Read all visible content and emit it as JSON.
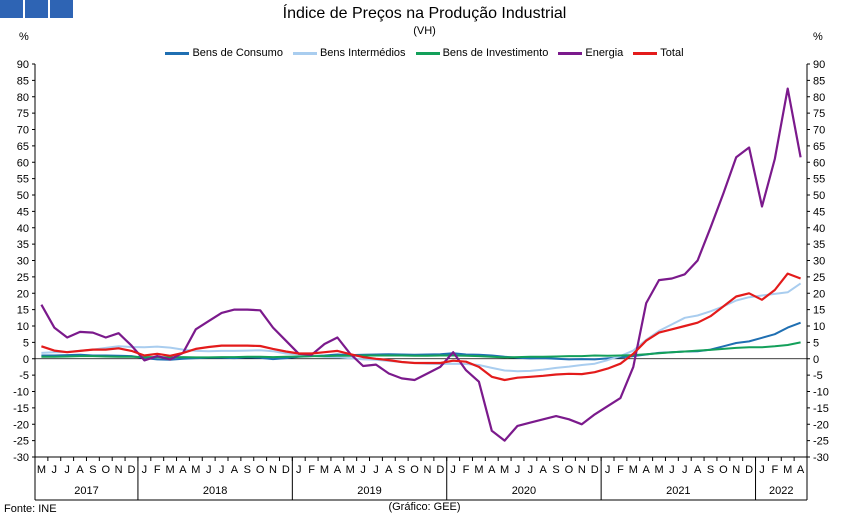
{
  "header": {
    "title": "Índice de Preços na Produção Industrial",
    "subtitle": "(VH)"
  },
  "units": {
    "left": "%",
    "right": "%"
  },
  "footer": {
    "source": "Fonte: INE",
    "credit": "(Gráfico: GEE)"
  },
  "chart_data": {
    "type": "line",
    "title": "Índice de Preços na Produção Industrial",
    "subtitle": "(VH)",
    "ylabel": "%",
    "ylim": [
      -30,
      90
    ],
    "yticks": [
      -30,
      -25,
      -20,
      -15,
      -10,
      -5,
      0,
      5,
      10,
      15,
      20,
      25,
      30,
      35,
      40,
      45,
      50,
      55,
      60,
      65,
      70,
      75,
      80,
      85,
      90
    ],
    "grid": false,
    "legend_position": "top",
    "x": [
      "2017-05",
      "2017-06",
      "2017-07",
      "2017-08",
      "2017-09",
      "2017-10",
      "2017-11",
      "2017-12",
      "2018-01",
      "2018-02",
      "2018-03",
      "2018-04",
      "2018-05",
      "2018-06",
      "2018-07",
      "2018-08",
      "2018-09",
      "2018-10",
      "2018-11",
      "2018-12",
      "2019-01",
      "2019-02",
      "2019-03",
      "2019-04",
      "2019-05",
      "2019-06",
      "2019-07",
      "2019-08",
      "2019-09",
      "2019-10",
      "2019-11",
      "2019-12",
      "2020-01",
      "2020-02",
      "2020-03",
      "2020-04",
      "2020-05",
      "2020-06",
      "2020-07",
      "2020-08",
      "2020-09",
      "2020-10",
      "2020-11",
      "2020-12",
      "2021-01",
      "2021-02",
      "2021-03",
      "2021-04",
      "2021-05",
      "2021-06",
      "2021-07",
      "2021-08",
      "2021-09",
      "2021-10",
      "2021-11",
      "2021-12",
      "2022-01",
      "2022-02",
      "2022-03",
      "2022-04"
    ],
    "month_labels": [
      "M",
      "J",
      "J",
      "A",
      "S",
      "O",
      "N",
      "D",
      "J",
      "F",
      "M",
      "A",
      "M",
      "J",
      "J",
      "A",
      "S",
      "O",
      "N",
      "D",
      "J",
      "F",
      "M",
      "A",
      "M",
      "J",
      "J",
      "A",
      "S",
      "O",
      "N",
      "D",
      "J",
      "F",
      "M",
      "A",
      "M",
      "J",
      "J",
      "A",
      "S",
      "O",
      "N",
      "D",
      "J",
      "F",
      "M",
      "A",
      "M",
      "J",
      "J",
      "A",
      "S",
      "O",
      "N",
      "D",
      "J",
      "F",
      "M",
      "A"
    ],
    "year_labels": [
      "2017",
      "2018",
      "2019",
      "2020",
      "2021",
      "2022"
    ],
    "year_spans": [
      [
        0,
        8
      ],
      [
        8,
        20
      ],
      [
        20,
        32
      ],
      [
        32,
        44
      ],
      [
        44,
        56
      ],
      [
        56,
        60
      ]
    ],
    "series": [
      {
        "name": "Bens de Consumo",
        "color": "#1f6fb2",
        "values": [
          1.0,
          1.0,
          1.1,
          1.2,
          1.0,
          1.0,
          0.9,
          0.8,
          0.2,
          -0.2,
          -0.3,
          0.0,
          0.2,
          0.3,
          0.3,
          0.2,
          0.4,
          0.3,
          -0.1,
          0.2,
          0.6,
          0.8,
          1.0,
          1.3,
          1.1,
          1.2,
          1.3,
          1.4,
          1.3,
          1.2,
          1.3,
          1.4,
          1.7,
          1.3,
          1.2,
          1.0,
          0.6,
          0.3,
          0.1,
          0.2,
          0.0,
          -0.2,
          -0.1,
          -0.2,
          0.1,
          0.4,
          0.8,
          1.3,
          1.8,
          2.0,
          2.2,
          2.3,
          2.8,
          3.8,
          4.8,
          5.3,
          6.4,
          7.5,
          9.5,
          11.0
        ]
      },
      {
        "name": "Bens Intermédios",
        "color": "#a9cdef",
        "values": [
          1.8,
          2.0,
          2.1,
          2.4,
          2.8,
          3.3,
          3.8,
          3.6,
          3.5,
          3.7,
          3.4,
          2.8,
          2.4,
          2.3,
          2.4,
          2.4,
          2.5,
          2.6,
          2.3,
          1.6,
          1.3,
          0.9,
          0.6,
          0.4,
          0.2,
          -0.2,
          -0.3,
          -0.7,
          -1.0,
          -1.3,
          -1.5,
          -1.6,
          -1.5,
          -1.6,
          -1.9,
          -2.8,
          -3.6,
          -3.8,
          -3.7,
          -3.3,
          -2.8,
          -2.4,
          -1.9,
          -1.5,
          -0.4,
          0.8,
          2.5,
          5.8,
          8.5,
          10.5,
          12.5,
          13.2,
          14.5,
          16.0,
          17.8,
          18.8,
          19.3,
          19.8,
          20.3,
          23.0
        ]
      },
      {
        "name": "Bens de Investimento",
        "color": "#13a05a",
        "values": [
          0.6,
          0.6,
          0.7,
          0.8,
          0.8,
          0.7,
          0.6,
          0.6,
          0.5,
          0.5,
          0.4,
          0.5,
          0.4,
          0.4,
          0.5,
          0.5,
          0.6,
          0.6,
          0.5,
          0.6,
          0.7,
          0.8,
          0.8,
          0.9,
          0.9,
          1.0,
          1.0,
          1.0,
          1.0,
          0.9,
          0.9,
          1.0,
          1.0,
          0.9,
          0.8,
          0.6,
          0.4,
          0.5,
          0.6,
          0.6,
          0.7,
          0.8,
          0.8,
          1.0,
          0.9,
          1.0,
          1.1,
          1.4,
          1.7,
          2.0,
          2.2,
          2.5,
          2.7,
          3.0,
          3.3,
          3.5,
          3.5,
          3.8,
          4.2,
          5.0
        ]
      },
      {
        "name": "Energia",
        "color": "#7b1a8c",
        "values": [
          16.5,
          9.5,
          6.5,
          8.2,
          8.0,
          6.5,
          7.8,
          4.0,
          -0.5,
          0.8,
          -0.2,
          1.8,
          9.0,
          11.5,
          14.0,
          15.0,
          15.0,
          14.8,
          9.5,
          5.5,
          1.5,
          1.2,
          4.5,
          6.5,
          1.5,
          -2.2,
          -1.8,
          -4.5,
          -6.0,
          -6.5,
          -4.5,
          -2.5,
          2.0,
          -3.5,
          -7.0,
          -22.0,
          -25.0,
          -20.5,
          -19.5,
          -18.5,
          -17.5,
          -18.5,
          -20.0,
          -17.0,
          -14.5,
          -12.0,
          -2.5,
          17.0,
          24.0,
          24.5,
          25.8,
          30.0,
          40.0,
          50.5,
          61.5,
          64.5,
          46.5,
          61.0,
          82.5,
          61.5
        ]
      },
      {
        "name": "Total",
        "color": "#e31b1b",
        "values": [
          3.8,
          2.5,
          2.0,
          2.4,
          2.8,
          2.8,
          3.2,
          2.4,
          1.0,
          1.5,
          0.9,
          1.8,
          3.0,
          3.6,
          4.0,
          4.0,
          4.0,
          3.9,
          3.0,
          2.2,
          1.6,
          1.6,
          2.0,
          2.4,
          1.4,
          0.5,
          0.0,
          -0.4,
          -1.0,
          -1.3,
          -1.3,
          -1.3,
          -0.6,
          -0.9,
          -2.5,
          -5.5,
          -6.5,
          -5.8,
          -5.5,
          -5.2,
          -4.8,
          -4.6,
          -4.7,
          -4.1,
          -3.0,
          -1.5,
          1.5,
          5.5,
          8.0,
          9.0,
          10.0,
          11.0,
          13.0,
          16.0,
          19.0,
          20.0,
          18.0,
          21.0,
          26.0,
          24.5
        ]
      }
    ]
  }
}
